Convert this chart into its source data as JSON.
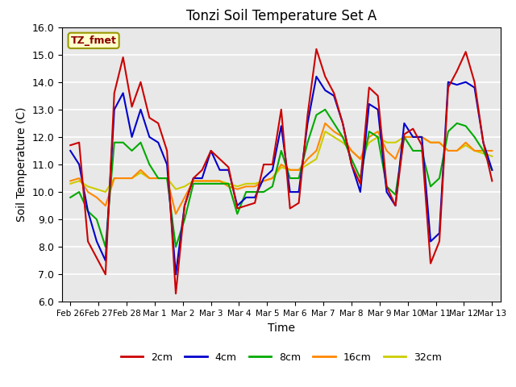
{
  "title": "Tonzi Soil Temperature Set A",
  "xlabel": "Time",
  "ylabel": "Soil Temperature (C)",
  "annotation": "TZ_fmet",
  "ylim": [
    6.0,
    16.0
  ],
  "yticks": [
    6.0,
    7.0,
    8.0,
    9.0,
    10.0,
    11.0,
    12.0,
    13.0,
    14.0,
    15.0,
    16.0
  ],
  "x_labels": [
    "Feb 26",
    "Feb 27",
    "Feb 28",
    "Mar 1",
    "Mar 2",
    "Mar 3",
    "Mar 4",
    "Mar 5",
    "Mar 6",
    "Mar 7",
    "Mar 8",
    "Mar 9",
    "Mar 10",
    "Mar 11",
    "Mar 12",
    "Mar 13"
  ],
  "colors": {
    "2cm": "#cc0000",
    "4cm": "#0000cc",
    "8cm": "#00aa00",
    "16cm": "#ff8800",
    "32cm": "#cccc00"
  },
  "figsize": [
    6.4,
    4.8
  ],
  "dpi": 100,
  "series": {
    "2cm": [
      11.7,
      11.8,
      8.2,
      7.6,
      7.0,
      13.6,
      14.9,
      13.1,
      14.0,
      12.7,
      12.5,
      11.5,
      6.3,
      9.5,
      10.5,
      10.8,
      11.5,
      11.2,
      10.9,
      9.4,
      9.5,
      9.6,
      11.0,
      11.0,
      13.0,
      9.4,
      9.6,
      12.8,
      15.2,
      14.2,
      13.6,
      12.5,
      11.0,
      10.3,
      13.8,
      13.5,
      10.2,
      9.5,
      12.1,
      12.3,
      11.7,
      7.4,
      8.2,
      13.8,
      14.4,
      15.1,
      14.0,
      11.8,
      10.4
    ],
    "4cm": [
      11.5,
      11.0,
      9.3,
      8.2,
      7.5,
      13.0,
      13.6,
      12.0,
      13.0,
      12.0,
      11.8,
      11.0,
      7.0,
      9.5,
      10.5,
      10.5,
      11.5,
      10.8,
      10.8,
      9.5,
      9.8,
      9.8,
      10.5,
      10.8,
      12.4,
      10.0,
      10.0,
      12.5,
      14.2,
      13.7,
      13.5,
      12.5,
      11.0,
      10.0,
      13.2,
      13.0,
      10.0,
      9.5,
      12.5,
      12.0,
      12.0,
      8.2,
      8.5,
      14.0,
      13.9,
      14.0,
      13.8,
      11.8,
      10.8
    ],
    "8cm": [
      9.8,
      10.0,
      9.3,
      9.0,
      8.0,
      11.8,
      11.8,
      11.5,
      11.8,
      11.0,
      10.5,
      10.5,
      8.0,
      9.0,
      10.3,
      10.3,
      10.3,
      10.3,
      10.3,
      9.2,
      10.0,
      10.0,
      10.0,
      10.2,
      11.5,
      10.5,
      10.5,
      11.8,
      12.8,
      13.0,
      12.5,
      12.0,
      11.2,
      10.5,
      12.2,
      12.0,
      10.2,
      9.9,
      12.0,
      11.5,
      11.5,
      10.2,
      10.5,
      12.2,
      12.5,
      12.4,
      12.0,
      11.5,
      10.8
    ],
    "16cm": [
      10.4,
      10.5,
      10.0,
      9.8,
      9.5,
      10.5,
      10.5,
      10.5,
      10.8,
      10.5,
      10.5,
      10.5,
      9.2,
      9.8,
      10.4,
      10.4,
      10.4,
      10.4,
      10.2,
      10.1,
      10.2,
      10.2,
      10.4,
      10.5,
      11.0,
      10.8,
      10.8,
      11.2,
      11.5,
      12.5,
      12.2,
      12.0,
      11.5,
      11.2,
      12.0,
      12.2,
      11.5,
      11.2,
      12.0,
      12.0,
      12.0,
      11.8,
      11.8,
      11.5,
      11.5,
      11.8,
      11.5,
      11.5,
      11.5
    ],
    "32cm": [
      10.3,
      10.4,
      10.2,
      10.1,
      10.0,
      10.5,
      10.5,
      10.5,
      10.7,
      10.5,
      10.5,
      10.5,
      10.1,
      10.2,
      10.4,
      10.4,
      10.4,
      10.4,
      10.3,
      10.2,
      10.3,
      10.3,
      10.4,
      10.5,
      10.9,
      10.8,
      10.8,
      11.0,
      11.2,
      12.2,
      12.0,
      11.8,
      11.5,
      11.2,
      11.8,
      12.0,
      11.8,
      11.8,
      12.0,
      12.0,
      12.0,
      11.8,
      11.8,
      11.5,
      11.5,
      11.7,
      11.5,
      11.4,
      11.3
    ]
  }
}
